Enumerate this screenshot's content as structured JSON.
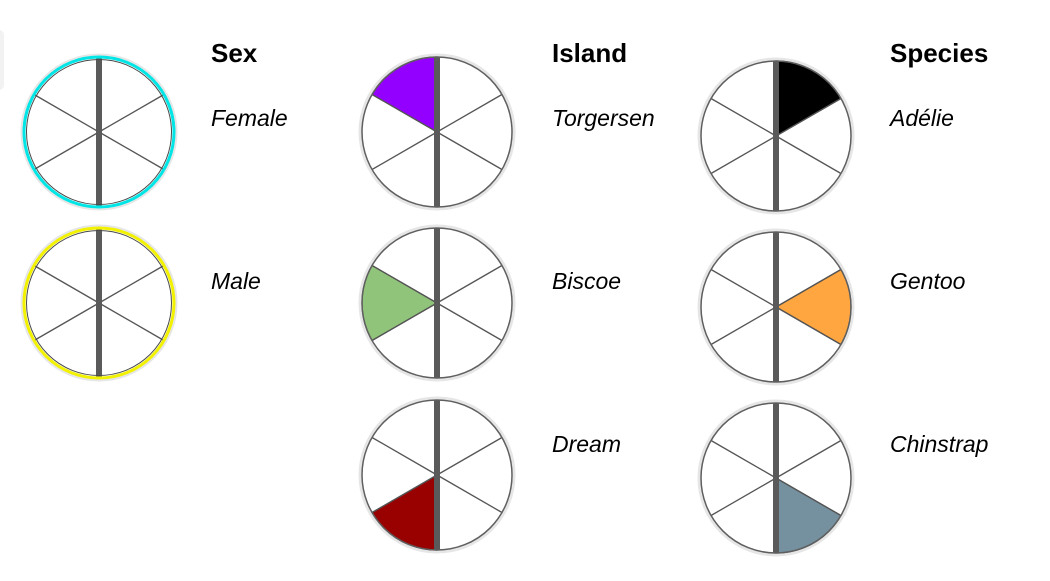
{
  "groups": [
    {
      "heading": "Sex",
      "items": [
        {
          "label": "Female",
          "ring_color": "#00e5e5",
          "slice": null,
          "fill": null
        },
        {
          "label": "Male",
          "ring_color": "#f2f200",
          "slice": null,
          "fill": null
        }
      ]
    },
    {
      "heading": "Island",
      "items": [
        {
          "label": "Torgersen",
          "ring_color": null,
          "slice": 5,
          "fill": "#9400ff"
        },
        {
          "label": "Biscoe",
          "ring_color": null,
          "slice": 4,
          "fill": "#91c47b"
        },
        {
          "label": "Dream",
          "ring_color": null,
          "slice": 3,
          "fill": "#990000"
        }
      ]
    },
    {
      "heading": "Species",
      "items": [
        {
          "label": "Adélie",
          "ring_color": null,
          "slice": 0,
          "fill": "#000000"
        },
        {
          "label": "Gentoo",
          "ring_color": null,
          "slice": 1,
          "fill": "#ffa640"
        },
        {
          "label": "Chinstrap",
          "ring_color": null,
          "slice": 2,
          "fill": "#75909e"
        }
      ]
    }
  ]
}
